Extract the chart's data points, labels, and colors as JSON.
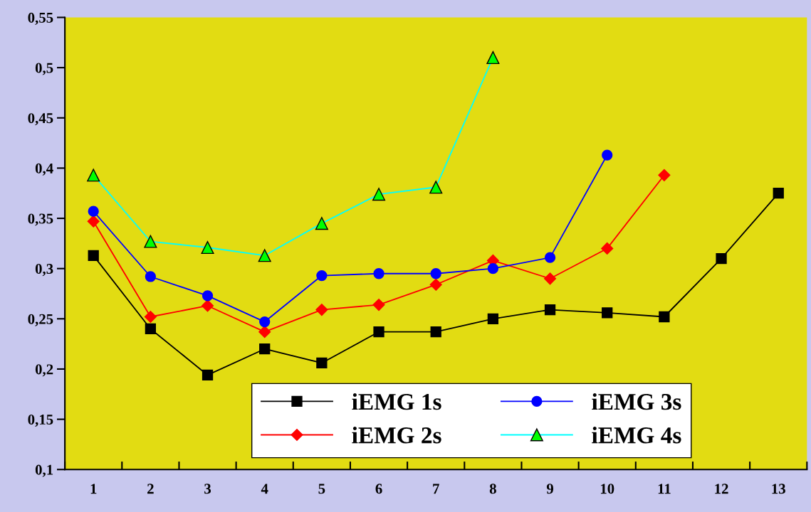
{
  "chart_data": {
    "type": "line",
    "categories": [
      "1",
      "2",
      "3",
      "4",
      "5",
      "6",
      "7",
      "8",
      "9",
      "10",
      "11",
      "12",
      "13"
    ],
    "ylim": [
      0.1,
      0.55
    ],
    "yticks": [
      {
        "value": 0.1,
        "label": "0,1"
      },
      {
        "value": 0.15,
        "label": "0,15"
      },
      {
        "value": 0.2,
        "label": "0,2"
      },
      {
        "value": 0.25,
        "label": "0,25"
      },
      {
        "value": 0.3,
        "label": "0,3"
      },
      {
        "value": 0.35,
        "label": "0,35"
      },
      {
        "value": 0.4,
        "label": "0,4"
      },
      {
        "value": 0.45,
        "label": "0,45"
      },
      {
        "value": 0.5,
        "label": "0,5"
      },
      {
        "value": 0.55,
        "label": "0,55"
      }
    ],
    "grid": false,
    "legend": "bottom right",
    "series": [
      {
        "name": "iEMG 1s",
        "color": "#000000",
        "marker": "square",
        "values": [
          0.313,
          0.24,
          0.194,
          0.22,
          0.206,
          0.237,
          0.237,
          0.25,
          0.259,
          0.256,
          0.252,
          0.31,
          0.375
        ]
      },
      {
        "name": "iEMG 2s",
        "color": "#ff0000",
        "marker": "diamond",
        "values": [
          0.347,
          0.252,
          0.263,
          0.237,
          0.259,
          0.264,
          0.284,
          0.308,
          0.29,
          0.32,
          0.393,
          null,
          null
        ]
      },
      {
        "name": "iEMG 3s",
        "color": "#0000ff",
        "marker": "circle",
        "values": [
          0.357,
          0.292,
          0.273,
          0.247,
          0.293,
          0.295,
          0.295,
          0.3,
          0.311,
          0.413,
          null,
          null,
          null
        ]
      },
      {
        "name": "iEMG 4s",
        "color": "#00ffff",
        "marker": "triangle",
        "values": [
          0.393,
          0.327,
          0.321,
          0.313,
          0.345,
          0.374,
          0.381,
          0.51,
          null,
          null,
          null,
          null,
          null
        ]
      }
    ]
  }
}
